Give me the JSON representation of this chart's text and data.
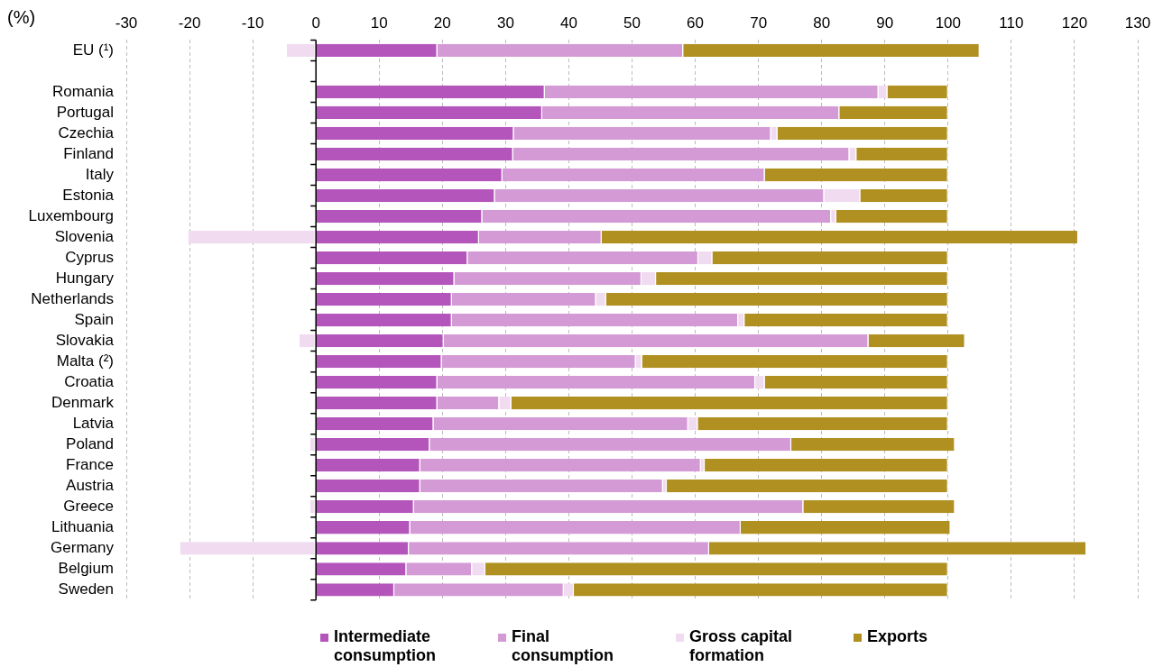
{
  "chart_data": {
    "type": "bar",
    "orientation": "horizontal",
    "stacked": true,
    "xlabel": "(%)",
    "categories": [
      "EU (¹)",
      null,
      "Romania",
      "Portugal",
      "Czechia",
      "Finland",
      "Italy",
      "Estonia",
      "Luxembourg",
      "Slovenia",
      "Cyprus",
      "Hungary",
      "Netherlands",
      "Spain",
      "Slovakia",
      "Malta (²)",
      "Croatia",
      "Denmark",
      "Latvia",
      "Poland",
      "France",
      "Austria",
      "Greece",
      "Lithuania",
      "Germany",
      "Belgium",
      "Sweden"
    ],
    "series": [
      {
        "name": "Intermediate consumption",
        "color": "#b455bb",
        "values": [
          19.2,
          null,
          36.2,
          35.8,
          31.3,
          31.2,
          29.5,
          28.3,
          26.3,
          25.8,
          24.0,
          21.9,
          21.5,
          21.5,
          20.2,
          19.9,
          19.2,
          19.2,
          18.6,
          18.0,
          16.5,
          16.5,
          15.5,
          14.9,
          14.7,
          14.3,
          12.4
        ]
      },
      {
        "name": "Final consumption",
        "color": "#d49ad6",
        "values": [
          38.9,
          null,
          52.8,
          47.0,
          40.7,
          53.2,
          41.5,
          52.1,
          55.2,
          19.4,
          36.5,
          29.6,
          22.8,
          45.3,
          67.2,
          30.7,
          50.3,
          9.8,
          40.3,
          57.2,
          44.4,
          38.4,
          61.6,
          52.3,
          47.5,
          10.4,
          26.8
        ]
      },
      {
        "name": "Gross capital formation",
        "color": "#f0dbf0",
        "values": [
          -4.6,
          null,
          1.4,
          0,
          1.0,
          1.1,
          0,
          5.7,
          0.8,
          -20.2,
          2.2,
          2.3,
          1.6,
          1.0,
          -2.6,
          1.0,
          1.5,
          1.9,
          1.5,
          -0.9,
          0.6,
          0.6,
          -0.9,
          0,
          -21.5,
          2.1,
          1.6
        ]
      },
      {
        "name": "Exports",
        "color": "#b09020",
        "values": [
          46.9,
          null,
          9.6,
          17.2,
          27.0,
          14.5,
          29.0,
          13.9,
          17.7,
          75.4,
          37.3,
          46.2,
          54.1,
          32.2,
          15.3,
          48.4,
          29.0,
          69.1,
          39.6,
          25.9,
          38.5,
          44.5,
          24.0,
          33.2,
          59.7,
          73.2,
          59.2
        ]
      }
    ],
    "xlim": [
      -30,
      130
    ],
    "xticks": [
      -30,
      -20,
      -10,
      0,
      10,
      20,
      30,
      40,
      50,
      60,
      70,
      80,
      90,
      100,
      110,
      120,
      130
    ],
    "ref_lines": [
      {
        "axis": "x",
        "value": 0,
        "color": "#000000",
        "line_style": "solid"
      }
    ],
    "grid": "x",
    "legend": "bottom"
  }
}
